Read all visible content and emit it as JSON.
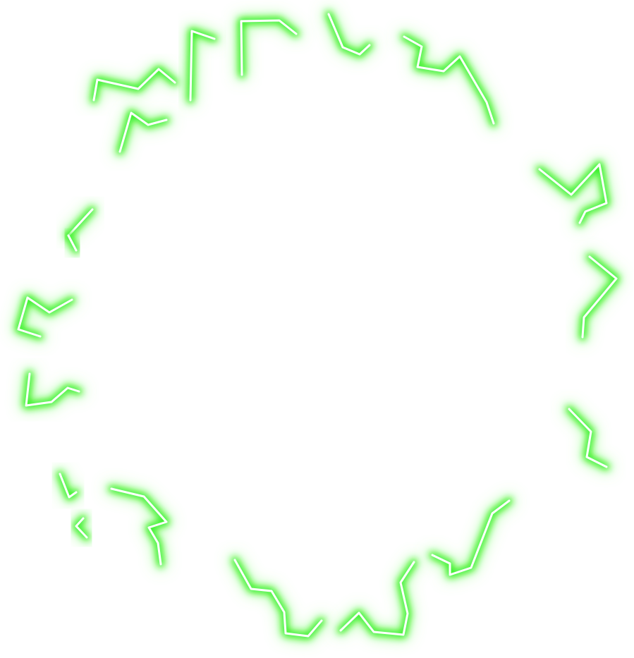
{
  "effect": {
    "name": "lightning-ring",
    "colors": {
      "background": "#ffffff",
      "glow": "#22ee11",
      "glow_outer": "#7dff6a",
      "core": "#ffffff"
    }
  }
}
